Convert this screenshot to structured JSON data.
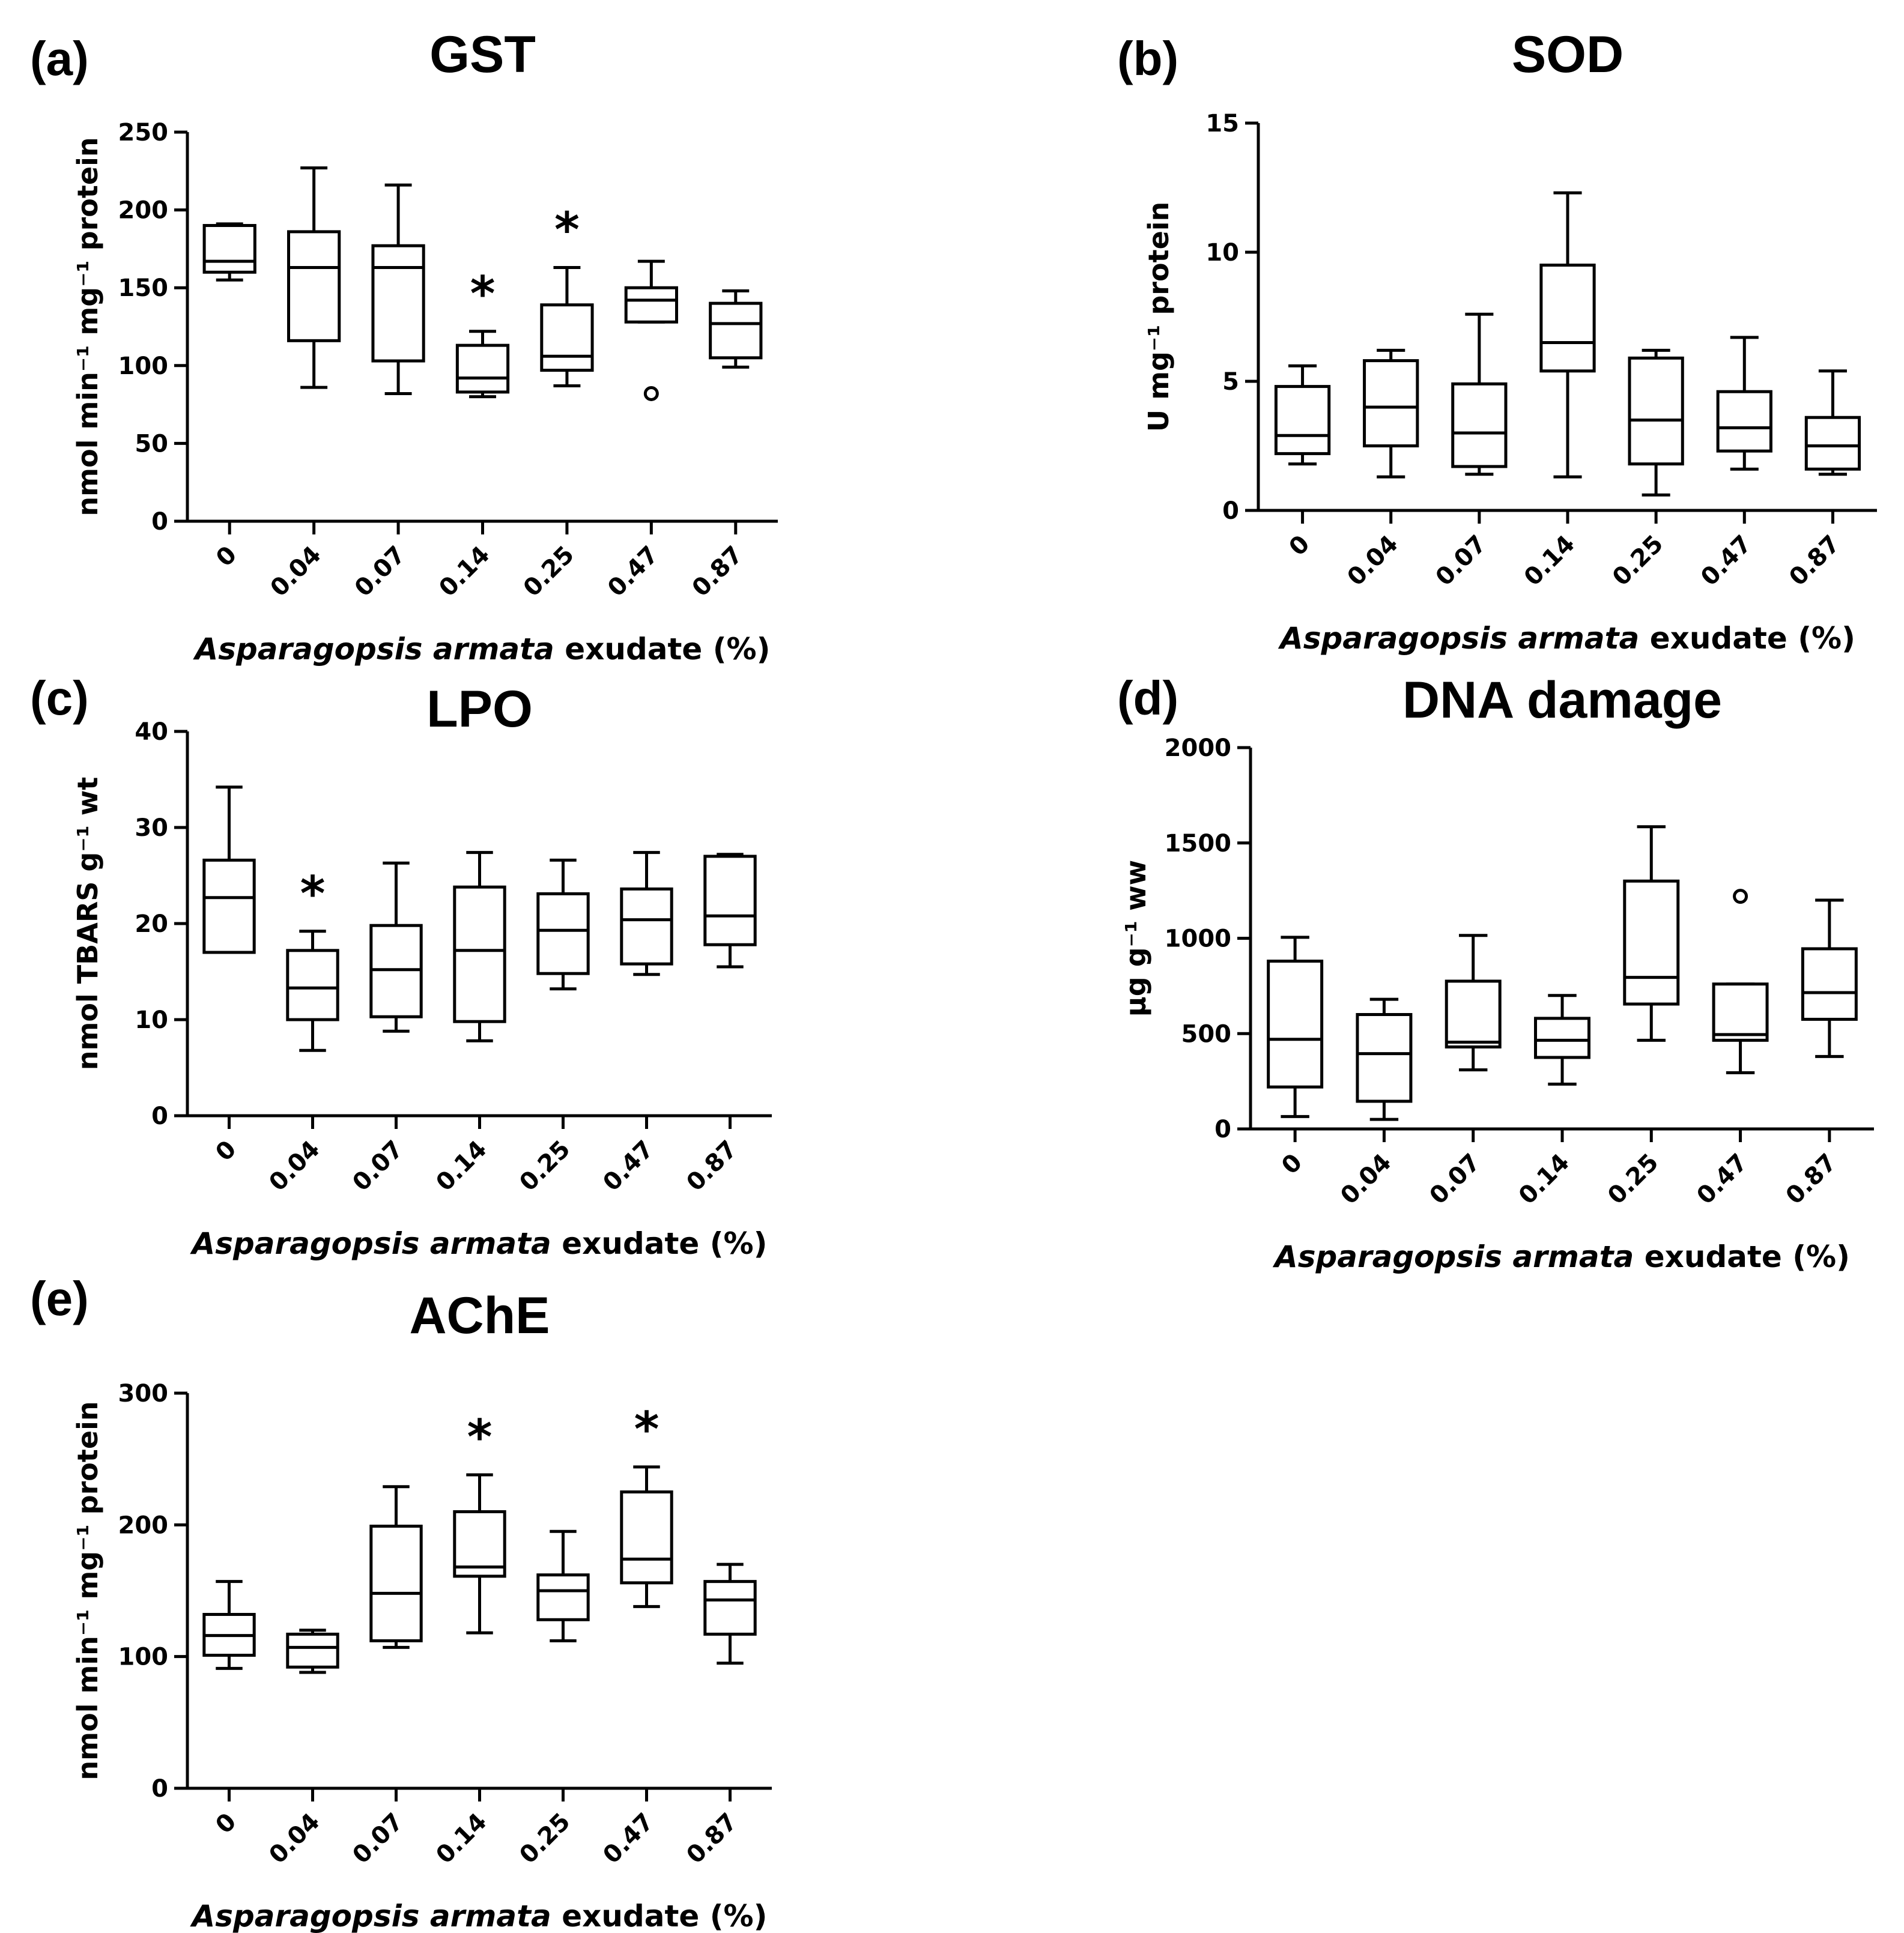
{
  "chart_data": [
    {
      "type": "boxplot",
      "panel_label": "(a)",
      "title": "GST",
      "ylabel": "nmol min⁻¹ mg⁻¹ protein",
      "xlabel_italic": "Asparagopsis armata",
      "xlabel_rest": " exudate (%)",
      "categories": [
        "0",
        "0.04",
        "0.07",
        "0.14",
        "0.25",
        "0.47",
        "0.87"
      ],
      "ylim": [
        0,
        250
      ],
      "yticks": [
        0,
        50,
        100,
        150,
        200,
        250
      ],
      "boxes": [
        {
          "min": 155,
          "q1": 160,
          "median": 167,
          "q3": 190,
          "max": 191
        },
        {
          "min": 86,
          "q1": 116,
          "median": 163,
          "q3": 186,
          "max": 227
        },
        {
          "min": 82,
          "q1": 103,
          "median": 163,
          "q3": 177,
          "max": 216
        },
        {
          "min": 80,
          "q1": 83,
          "median": 92,
          "q3": 113,
          "max": 122
        },
        {
          "min": 87,
          "q1": 97,
          "median": 106,
          "q3": 139,
          "max": 163
        },
        {
          "min": 128,
          "q1": 128,
          "median": 142,
          "q3": 150,
          "max": 167
        },
        {
          "min": 99,
          "q1": 105,
          "median": 127,
          "q3": 140,
          "max": 148
        }
      ],
      "outliers": [
        {
          "category": "0.47",
          "value": 82
        }
      ],
      "significant": [
        "0.14",
        "0.25"
      ],
      "sig_symbol": "*"
    },
    {
      "type": "boxplot",
      "panel_label": "(b)",
      "title": "SOD",
      "ylabel": "U mg⁻¹ protein",
      "xlabel_italic": "Asparagopsis armata",
      "xlabel_rest": " exudate (%)",
      "categories": [
        "0",
        "0.04",
        "0.07",
        "0.14",
        "0.25",
        "0.47",
        "0.87"
      ],
      "ylim": [
        0,
        15
      ],
      "yticks": [
        0,
        5,
        10,
        15
      ],
      "boxes": [
        {
          "min": 1.8,
          "q1": 2.2,
          "median": 2.9,
          "q3": 4.8,
          "max": 5.6
        },
        {
          "min": 1.3,
          "q1": 2.5,
          "median": 4.0,
          "q3": 5.8,
          "max": 6.2
        },
        {
          "min": 1.4,
          "q1": 1.7,
          "median": 3.0,
          "q3": 4.9,
          "max": 7.6
        },
        {
          "min": 1.3,
          "q1": 5.4,
          "median": 6.5,
          "q3": 9.5,
          "max": 12.3
        },
        {
          "min": 0.6,
          "q1": 1.8,
          "median": 3.5,
          "q3": 5.9,
          "max": 6.2
        },
        {
          "min": 1.6,
          "q1": 2.3,
          "median": 3.2,
          "q3": 4.6,
          "max": 6.7
        },
        {
          "min": 1.4,
          "q1": 1.6,
          "median": 2.5,
          "q3": 3.6,
          "max": 5.4
        }
      ],
      "outliers": [],
      "significant": [],
      "sig_symbol": "*"
    },
    {
      "type": "boxplot",
      "panel_label": "(c)",
      "title": "LPO",
      "ylabel": "nmol TBARS g⁻¹ wt",
      "xlabel_italic": "Asparagopsis armata",
      "xlabel_rest": " exudate (%)",
      "categories": [
        "0",
        "0.04",
        "0.07",
        "0.14",
        "0.25",
        "0.47",
        "0.87"
      ],
      "ylim": [
        0,
        40
      ],
      "yticks": [
        0,
        10,
        20,
        30,
        40
      ],
      "boxes": [
        {
          "min": 17,
          "q1": 17,
          "median": 22.7,
          "q3": 26.6,
          "max": 34.2
        },
        {
          "min": 6.8,
          "q1": 10,
          "median": 13.3,
          "q3": 17.2,
          "max": 19.2
        },
        {
          "min": 8.8,
          "q1": 10.3,
          "median": 15.2,
          "q3": 19.8,
          "max": 26.3
        },
        {
          "min": 7.8,
          "q1": 9.8,
          "median": 17.2,
          "q3": 23.8,
          "max": 27.4
        },
        {
          "min": 13.2,
          "q1": 14.8,
          "median": 19.3,
          "q3": 23.1,
          "max": 26.6
        },
        {
          "min": 14.7,
          "q1": 15.8,
          "median": 20.4,
          "q3": 23.6,
          "max": 27.4
        },
        {
          "min": 15.5,
          "q1": 17.8,
          "median": 20.8,
          "q3": 27.0,
          "max": 27.2
        }
      ],
      "outliers": [],
      "significant": [
        "0.04"
      ],
      "sig_symbol": "*"
    },
    {
      "type": "boxplot",
      "panel_label": "(d)",
      "title": "DNA damage",
      "ylabel": "µg g⁻¹ ww",
      "xlabel_italic": "Asparagopsis armata",
      "xlabel_rest": " exudate (%)",
      "categories": [
        "0",
        "0.04",
        "0.07",
        "0.14",
        "0.25",
        "0.47",
        "0.87"
      ],
      "ylim": [
        0,
        2000
      ],
      "yticks": [
        0,
        500,
        1000,
        1500,
        2000
      ],
      "boxes": [
        {
          "min": 65,
          "q1": 220,
          "median": 470,
          "q3": 880,
          "max": 1005
        },
        {
          "min": 50,
          "q1": 145,
          "median": 395,
          "q3": 600,
          "max": 680
        },
        {
          "min": 310,
          "q1": 430,
          "median": 455,
          "q3": 775,
          "max": 1015
        },
        {
          "min": 235,
          "q1": 375,
          "median": 465,
          "q3": 580,
          "max": 700
        },
        {
          "min": 465,
          "q1": 655,
          "median": 795,
          "q3": 1300,
          "max": 1585
        },
        {
          "min": 295,
          "q1": 465,
          "median": 495,
          "q3": 760,
          "max": 760
        },
        {
          "min": 380,
          "q1": 575,
          "median": 715,
          "q3": 945,
          "max": 1200
        }
      ],
      "outliers": [
        {
          "category": "0.47",
          "value": 1220
        }
      ],
      "significant": [],
      "sig_symbol": "*"
    },
    {
      "type": "boxplot",
      "panel_label": "(e)",
      "title": "AChE",
      "ylabel": "nmol min⁻¹ mg⁻¹ protein",
      "xlabel_italic": "Asparagopsis armata",
      "xlabel_rest": " exudate (%)",
      "categories": [
        "0",
        "0.04",
        "0.07",
        "0.14",
        "0.25",
        "0.47",
        "0.87"
      ],
      "ylim": [
        0,
        300
      ],
      "yticks": [
        0,
        100,
        200,
        300
      ],
      "boxes": [
        {
          "min": 91,
          "q1": 101,
          "median": 116,
          "q3": 132,
          "max": 157
        },
        {
          "min": 88,
          "q1": 92,
          "median": 107,
          "q3": 117,
          "max": 120
        },
        {
          "min": 107,
          "q1": 112,
          "median": 148,
          "q3": 199,
          "max": 229
        },
        {
          "min": 118,
          "q1": 161,
          "median": 168,
          "q3": 210,
          "max": 238
        },
        {
          "min": 112,
          "q1": 128,
          "median": 150,
          "q3": 162,
          "max": 195
        },
        {
          "min": 138,
          "q1": 156,
          "median": 174,
          "q3": 225,
          "max": 244
        },
        {
          "min": 95,
          "q1": 117,
          "median": 143,
          "q3": 157,
          "max": 170
        }
      ],
      "outliers": [],
      "significant": [
        "0.14",
        "0.47"
      ],
      "sig_symbol": "*"
    }
  ]
}
